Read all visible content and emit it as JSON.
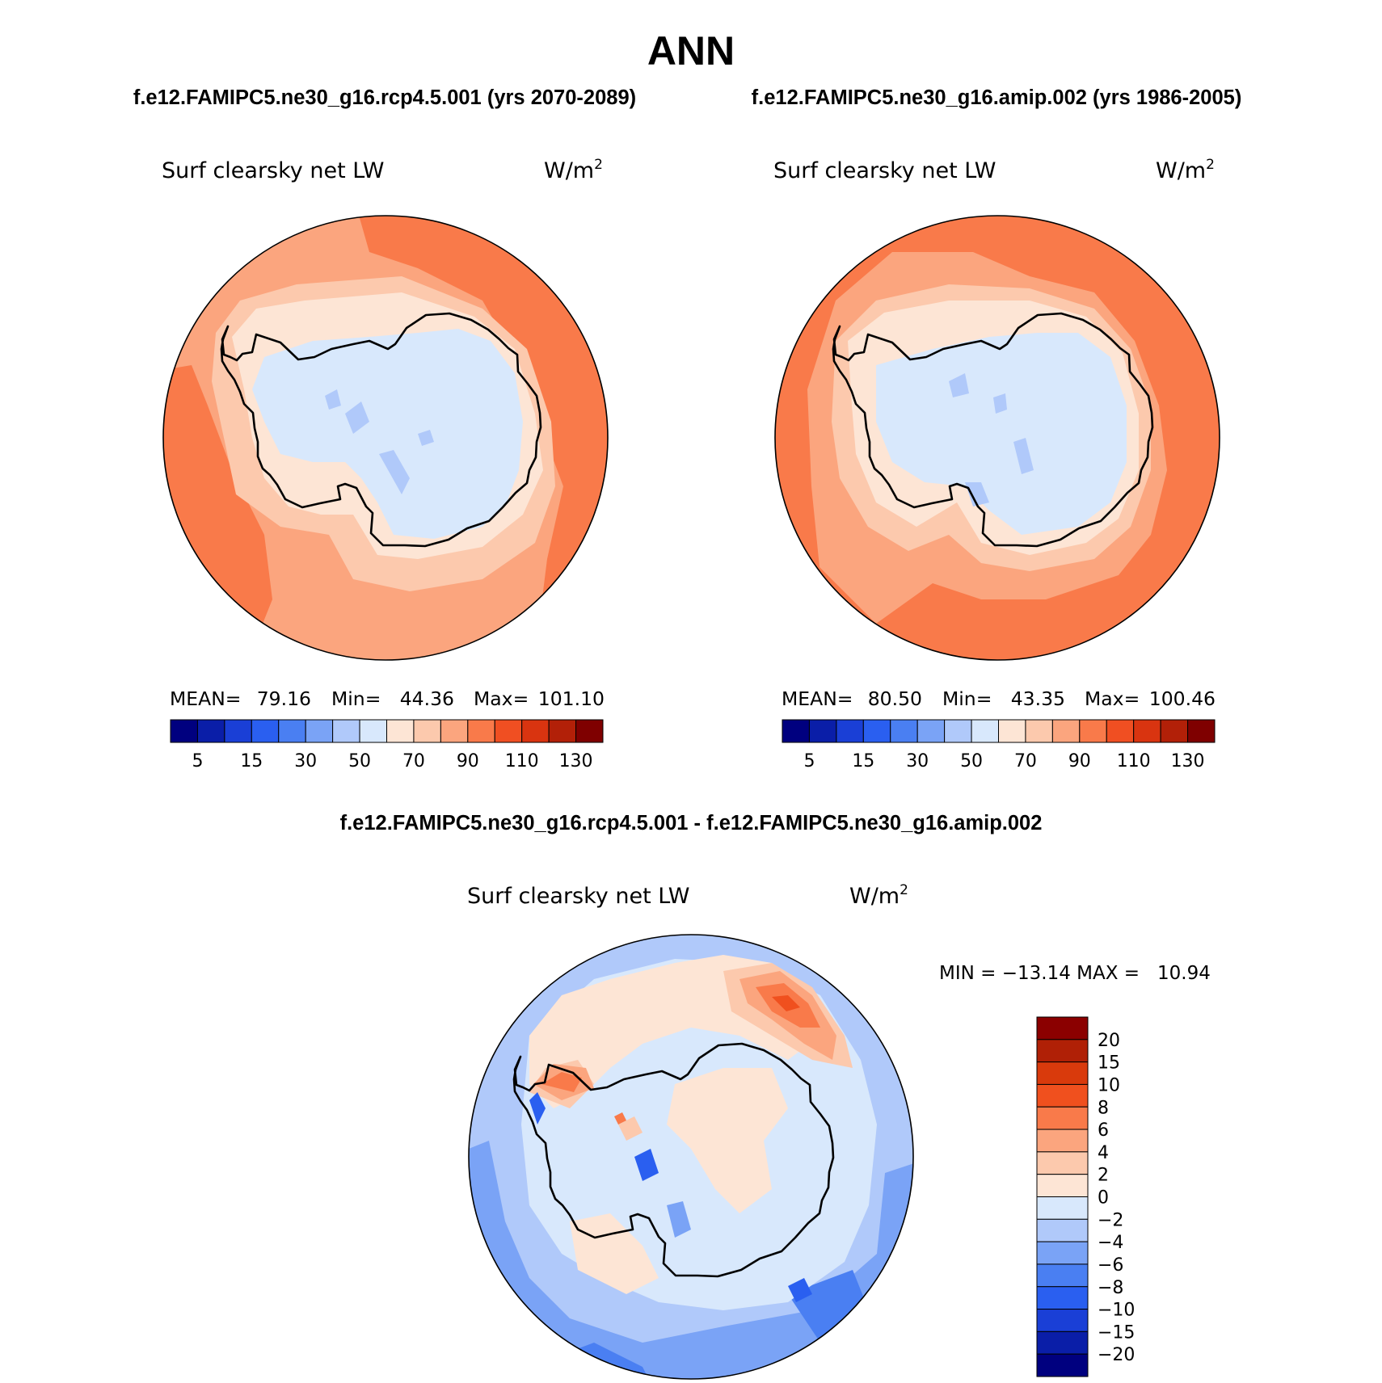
{
  "season": "ANN",
  "header": {
    "case1": "f.e12.FAMIPC5.ne30_g16.rcp4.5.001 (yrs 2070-2089)",
    "case2": "f.e12.FAMIPC5.ne30_g16.amip.002 (yrs 1986-2005)"
  },
  "diff_title": "f.e12.FAMIPC5.ne30_g16.rcp4.5.001 - f.e12.FAMIPC5.ne30_g16.amip.002",
  "panels": [
    {
      "variable": "Surf clearsky net LW",
      "units_base": "W/m",
      "units_exp": "2",
      "mean_label": "MEAN=",
      "mean_value": "79.16",
      "min_label": "Min=",
      "min_value": "44.36",
      "max_label": "Max=",
      "max_value": "101.10"
    },
    {
      "variable": "Surf clearsky net LW",
      "units_base": "W/m",
      "units_exp": "2",
      "mean_label": "MEAN=",
      "mean_value": "80.50",
      "min_label": "Min=",
      "min_value": "43.35",
      "max_label": "Max=",
      "max_value": "100.46"
    }
  ],
  "diff_panel": {
    "variable": "Surf clearsky net LW",
    "units_base": "W/m",
    "units_exp": "2",
    "minmax": "MIN = −13.14 MAX =   10.94"
  },
  "abs_colorbar": {
    "colors": [
      "#00007f",
      "#0a1ea8",
      "#1a3fd6",
      "#2a5ff0",
      "#4a7ff2",
      "#7aa3f6",
      "#b0c9fa",
      "#d8e8fc",
      "#fde5d5",
      "#fcc9ad",
      "#fba57e",
      "#f97a4a",
      "#f04f22",
      "#d93410",
      "#b22008",
      "#7f0000"
    ],
    "tick_labels": [
      "5",
      "15",
      "30",
      "50",
      "70",
      "90",
      "110",
      "130"
    ]
  },
  "diff_colorbar": {
    "colors": [
      "#8b0000",
      "#b02006",
      "#d93a0c",
      "#f0501e",
      "#f97a4a",
      "#fba57e",
      "#fcc9ad",
      "#fde5d5",
      "#d8e8fc",
      "#b0c9fa",
      "#7aa3f6",
      "#4a7ff2",
      "#2a5ff0",
      "#1a3fd6",
      "#0a1ea8",
      "#00007f"
    ],
    "tick_labels": [
      "20",
      "15",
      "10",
      "8",
      "6",
      "4",
      "2",
      "0",
      "−2",
      "−4",
      "−6",
      "−8",
      "−10",
      "−15",
      "−20"
    ]
  }
}
